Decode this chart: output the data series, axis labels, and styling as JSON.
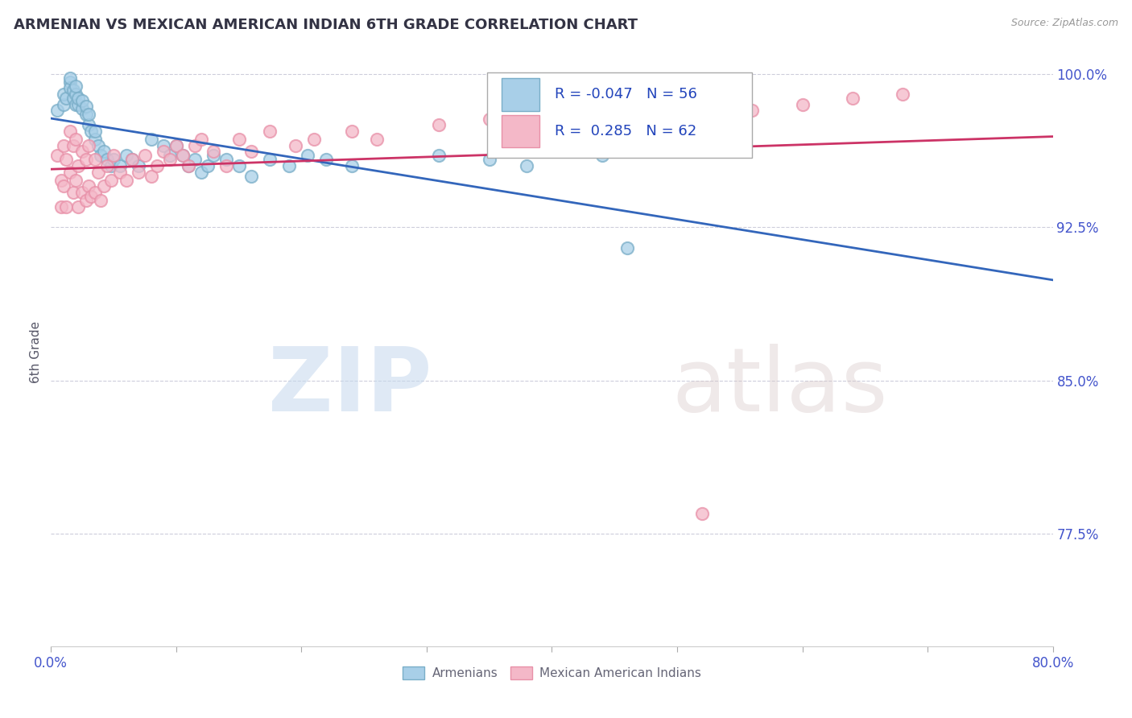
{
  "title": "ARMENIAN VS MEXICAN AMERICAN INDIAN 6TH GRADE CORRELATION CHART",
  "source_text": "Source: ZipAtlas.com",
  "ylabel": "6th Grade",
  "xlim": [
    0.0,
    0.8
  ],
  "ylim": [
    0.72,
    1.008
  ],
  "xticks": [
    0.0,
    0.1,
    0.2,
    0.3,
    0.4,
    0.5,
    0.6,
    0.7,
    0.8
  ],
  "xticklabels": [
    "0.0%",
    "",
    "",
    "",
    "",
    "",
    "",
    "",
    "80.0%"
  ],
  "yticks": [
    0.775,
    0.85,
    0.925,
    1.0
  ],
  "yticklabels": [
    "77.5%",
    "85.0%",
    "92.5%",
    "100.0%"
  ],
  "blue_color": "#a8cfe8",
  "pink_color": "#f4b8c8",
  "blue_edge_color": "#7aaec8",
  "pink_edge_color": "#e890a8",
  "blue_line_color": "#3366bb",
  "pink_line_color": "#cc3366",
  "legend_blue_R": "-0.047",
  "legend_blue_N": "56",
  "legend_pink_R": "0.285",
  "legend_pink_N": "62",
  "blue_label": "Armenians",
  "pink_label": "Mexican American Indians",
  "watermark_zip": "ZIP",
  "watermark_atlas": "atlas",
  "blue_points_x": [
    0.005,
    0.01,
    0.01,
    0.012,
    0.015,
    0.015,
    0.015,
    0.018,
    0.018,
    0.02,
    0.02,
    0.02,
    0.022,
    0.022,
    0.025,
    0.025,
    0.028,
    0.028,
    0.03,
    0.03,
    0.032,
    0.035,
    0.035,
    0.038,
    0.04,
    0.042,
    0.045,
    0.048,
    0.05,
    0.055,
    0.06,
    0.065,
    0.07,
    0.08,
    0.09,
    0.095,
    0.1,
    0.105,
    0.11,
    0.115,
    0.12,
    0.125,
    0.13,
    0.14,
    0.15,
    0.16,
    0.175,
    0.19,
    0.205,
    0.22,
    0.24,
    0.31,
    0.35,
    0.38,
    0.44,
    0.46
  ],
  "blue_points_y": [
    0.982,
    0.985,
    0.99,
    0.988,
    0.996,
    0.993,
    0.998,
    0.988,
    0.992,
    0.985,
    0.99,
    0.994,
    0.985,
    0.988,
    0.983,
    0.987,
    0.98,
    0.984,
    0.975,
    0.98,
    0.972,
    0.968,
    0.972,
    0.965,
    0.96,
    0.962,
    0.958,
    0.955,
    0.958,
    0.955,
    0.96,
    0.958,
    0.955,
    0.968,
    0.965,
    0.96,
    0.965,
    0.96,
    0.955,
    0.958,
    0.952,
    0.955,
    0.96,
    0.958,
    0.955,
    0.95,
    0.958,
    0.955,
    0.96,
    0.958,
    0.955,
    0.96,
    0.958,
    0.955,
    0.96,
    0.915
  ],
  "pink_points_x": [
    0.005,
    0.008,
    0.008,
    0.01,
    0.01,
    0.012,
    0.012,
    0.015,
    0.015,
    0.018,
    0.018,
    0.02,
    0.02,
    0.022,
    0.022,
    0.025,
    0.025,
    0.028,
    0.028,
    0.03,
    0.03,
    0.032,
    0.035,
    0.035,
    0.038,
    0.04,
    0.042,
    0.045,
    0.048,
    0.05,
    0.055,
    0.06,
    0.065,
    0.07,
    0.075,
    0.08,
    0.085,
    0.09,
    0.095,
    0.1,
    0.105,
    0.11,
    0.115,
    0.12,
    0.13,
    0.14,
    0.15,
    0.16,
    0.175,
    0.195,
    0.21,
    0.24,
    0.26,
    0.31,
    0.35,
    0.38,
    0.46,
    0.52,
    0.56,
    0.6,
    0.64,
    0.68
  ],
  "pink_points_y": [
    0.96,
    0.948,
    0.935,
    0.965,
    0.945,
    0.958,
    0.935,
    0.972,
    0.952,
    0.965,
    0.942,
    0.968,
    0.948,
    0.955,
    0.935,
    0.962,
    0.942,
    0.958,
    0.938,
    0.965,
    0.945,
    0.94,
    0.958,
    0.942,
    0.952,
    0.938,
    0.945,
    0.955,
    0.948,
    0.96,
    0.952,
    0.948,
    0.958,
    0.952,
    0.96,
    0.95,
    0.955,
    0.962,
    0.958,
    0.965,
    0.96,
    0.955,
    0.965,
    0.968,
    0.962,
    0.955,
    0.968,
    0.962,
    0.972,
    0.965,
    0.968,
    0.972,
    0.968,
    0.975,
    0.978,
    0.975,
    0.98,
    0.785,
    0.982,
    0.985,
    0.988,
    0.99
  ]
}
